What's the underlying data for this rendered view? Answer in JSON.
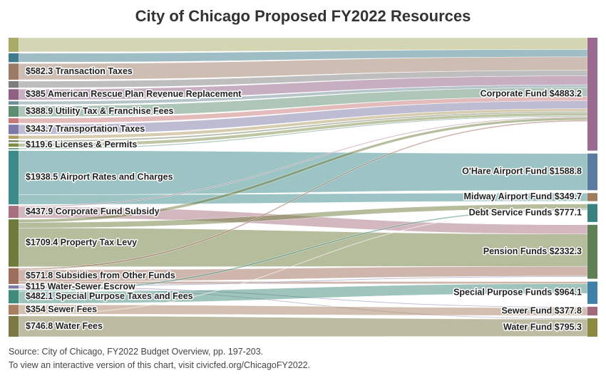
{
  "title": "City of Chicago Proposed FY2022 Resources",
  "source": "Source: City of Chicago, FY2022 Budget Overview, pp. 197-203.",
  "interactive_note": "To view an interactive version of this chart, visit civicfed.org/ChicagoFY2022.",
  "chart_data": {
    "type": "sankey",
    "title": "City of Chicago Proposed FY2022 Resources",
    "sources": [
      {
        "id": "s0",
        "label": "",
        "value": 510,
        "color": "#a9ab68"
      },
      {
        "id": "s1",
        "label": "",
        "value": 320,
        "color": "#3f7b8c"
      },
      {
        "id": "s2",
        "label": "$582.3 Transaction Taxes",
        "value": 582.3,
        "color": "#9c7b66"
      },
      {
        "id": "s3",
        "label": "",
        "value": 240,
        "color": "#7d7d7d"
      },
      {
        "id": "s4",
        "label": "$385 American Rescue Plan Revenue Replacement",
        "value": 385,
        "color": "#8f5f84"
      },
      {
        "id": "s5",
        "label": "",
        "value": 120,
        "color": "#6d8c96"
      },
      {
        "id": "s6",
        "label": "$388.9 Utility Tax & Franchise Fees",
        "value": 388.9,
        "color": "#5c8d72"
      },
      {
        "id": "s7",
        "label": "",
        "value": 180,
        "color": "#c87878"
      },
      {
        "id": "s8",
        "label": "$343.7 Transportation Taxes",
        "value": 343.7,
        "color": "#7d79a8"
      },
      {
        "id": "s9",
        "label": "",
        "value": 120,
        "color": "#b09a5f"
      },
      {
        "id": "s10",
        "label": "",
        "value": 60,
        "color": "#6b7c5c"
      },
      {
        "id": "s11",
        "label": "$119.6 Licenses & Permits",
        "value": 119.6,
        "color": "#7d8b47"
      },
      {
        "id": "s12",
        "label": "",
        "value": 40,
        "color": "#4e8a70"
      },
      {
        "id": "s13",
        "label": "$1938.5 Airport Rates and Charges",
        "value": 1938.5,
        "color": "#3c8a8a"
      },
      {
        "id": "s14",
        "label": "$437.9 Corporate Fund Subsidy",
        "value": 437.9,
        "color": "#a86f7f"
      },
      {
        "id": "s15",
        "label": "$1709.4 Property Tax Levy",
        "value": 1709.4,
        "color": "#6d7c3c"
      },
      {
        "id": "s16",
        "label": "$571.8 Subsidies from Other Funds",
        "value": 571.8,
        "color": "#9d6e5c"
      },
      {
        "id": "s17",
        "label": "$115 Water-Sewer Escrow",
        "value": 115,
        "color": "#7f79a8"
      },
      {
        "id": "s18",
        "label": "$482.1 Special Purpose Taxes and Fees",
        "value": 482.1,
        "color": "#3f8a78"
      },
      {
        "id": "s19",
        "label": "$354 Sewer Fees",
        "value": 354,
        "color": "#a87f60"
      },
      {
        "id": "s20",
        "label": "$746.8 Water Fees",
        "value": 746.8,
        "color": "#7b7a45"
      }
    ],
    "targets": [
      {
        "id": "t0",
        "label": "Corporate Fund $4883.2",
        "value": 4883.2,
        "color": "#9b6b8f"
      },
      {
        "id": "t1",
        "label": "O'Hare Airport Fund $1588.8",
        "value": 1588.8,
        "color": "#5c7ba0"
      },
      {
        "id": "t2",
        "label": "Midway Airport Fund $349.7",
        "value": 349.7,
        "color": "#a07a5c"
      },
      {
        "id": "t3",
        "label": "Debt Service Funds $777.1",
        "value": 777.1,
        "color": "#3a8080"
      },
      {
        "id": "t4",
        "label": "Pension Funds $2332.3",
        "value": 2332.3,
        "color": "#5f7f57"
      },
      {
        "id": "t5",
        "label": "Special Purpose Funds $964.1",
        "value": 964.1,
        "color": "#3f7fa8"
      },
      {
        "id": "t6",
        "label": "Sewer Fund $377.8",
        "value": 377.8,
        "color": "#a06878"
      },
      {
        "id": "t7",
        "label": "Water Fund $795.3",
        "value": 795.3,
        "color": "#8a8a45"
      }
    ],
    "links": [
      {
        "source": "s0",
        "target": "t0",
        "value": 510
      },
      {
        "source": "s1",
        "target": "t0",
        "value": 320
      },
      {
        "source": "s2",
        "target": "t0",
        "value": 582.3
      },
      {
        "source": "s3",
        "target": "t0",
        "value": 240
      },
      {
        "source": "s4",
        "target": "t0",
        "value": 385
      },
      {
        "source": "s5",
        "target": "t0",
        "value": 120
      },
      {
        "source": "s6",
        "target": "t0",
        "value": 388.9
      },
      {
        "source": "s7",
        "target": "t0",
        "value": 180
      },
      {
        "source": "s8",
        "target": "t0",
        "value": 343.7
      },
      {
        "source": "s9",
        "target": "t0",
        "value": 120
      },
      {
        "source": "s10",
        "target": "t0",
        "value": 60
      },
      {
        "source": "s11",
        "target": "t0",
        "value": 119.6
      },
      {
        "source": "s12",
        "target": "t0",
        "value": 40
      },
      {
        "source": "s13",
        "target": "t1",
        "value": 1588.8
      },
      {
        "source": "s13",
        "target": "t2",
        "value": 349.7
      },
      {
        "source": "s14",
        "target": "t0",
        "value": 40
      },
      {
        "source": "s14",
        "target": "t4",
        "value": 398
      },
      {
        "source": "s15",
        "target": "t0",
        "value": 110
      },
      {
        "source": "s15",
        "target": "t3",
        "value": 200
      },
      {
        "source": "s15",
        "target": "t4",
        "value": 1400
      },
      {
        "source": "s16",
        "target": "t0",
        "value": 60
      },
      {
        "source": "s16",
        "target": "t4",
        "value": 420
      },
      {
        "source": "s16",
        "target": "t5",
        "value": 92
      },
      {
        "source": "s17",
        "target": "t4",
        "value": 40
      },
      {
        "source": "s17",
        "target": "t6",
        "value": 40
      },
      {
        "source": "s17",
        "target": "t7",
        "value": 35
      },
      {
        "source": "s18",
        "target": "t3",
        "value": 60
      },
      {
        "source": "s18",
        "target": "t5",
        "value": 422
      },
      {
        "source": "s19",
        "target": "t6",
        "value": 338
      },
      {
        "source": "s19",
        "target": "t3",
        "value": 16
      },
      {
        "source": "s20",
        "target": "t7",
        "value": 746.8
      }
    ]
  }
}
